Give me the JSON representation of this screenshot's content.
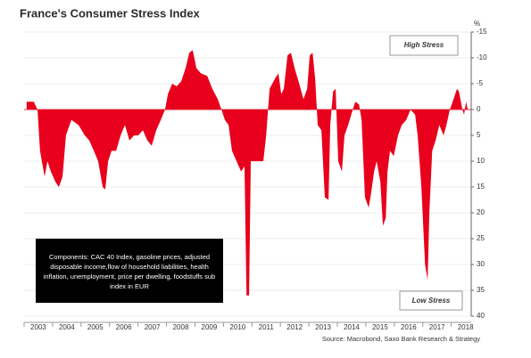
{
  "chart_data": {
    "type": "area",
    "title": "France's Consumer Stress Index",
    "unit": "%",
    "color": "#e8001c",
    "grid": true,
    "y_inverted": true,
    "annotations": {
      "high": "High Stress",
      "low": "Low Stress",
      "components": [
        "Components: CAC 40 Index, gasoline prices, adjusted",
        "disposable income,flow of household liabilities, health",
        "inflation, unemployment, price per dwelling, foodstuffs sub",
        "index in EUR"
      ]
    },
    "source": "Source: Macrobond, Saxo Bank Research & Strategy",
    "xlim": [
      2003,
      2018.7
    ],
    "xticks": [
      2003,
      2004,
      2005,
      2006,
      2007,
      2008,
      2009,
      2010,
      2011,
      2012,
      2013,
      2014,
      2015,
      2016,
      2017,
      2018
    ],
    "ylim": [
      40,
      -15
    ],
    "yticks": [
      -15,
      -10,
      -5,
      0,
      5,
      10,
      15,
      20,
      25,
      30,
      35,
      40
    ],
    "x": [
      2003.09,
      2003.34,
      2003.47,
      2003.56,
      2003.72,
      2003.82,
      2003.94,
      2004.1,
      2004.22,
      2004.35,
      2004.47,
      2004.66,
      2004.91,
      2005.13,
      2005.29,
      2005.45,
      2005.6,
      2005.76,
      2005.85,
      2005.95,
      2006.07,
      2006.23,
      2006.39,
      2006.54,
      2006.7,
      2006.86,
      2007.01,
      2007.17,
      2007.33,
      2007.48,
      2007.64,
      2007.8,
      2007.95,
      2008.05,
      2008.2,
      2008.36,
      2008.52,
      2008.67,
      2008.8,
      2008.92,
      2009.05,
      2009.21,
      2009.43,
      2009.61,
      2009.8,
      2009.93,
      2010.05,
      2010.18,
      2010.3,
      2010.46,
      2010.62,
      2010.74,
      2010.81,
      2010.9,
      2010.96,
      2011.12,
      2011.24,
      2011.4,
      2011.5,
      2011.62,
      2011.81,
      2011.93,
      2012.03,
      2012.12,
      2012.25,
      2012.37,
      2012.5,
      2012.66,
      2012.81,
      2012.94,
      2013.03,
      2013.13,
      2013.22,
      2013.31,
      2013.44,
      2013.56,
      2013.69,
      2013.75,
      2013.85,
      2013.94,
      2014.03,
      2014.16,
      2014.25,
      2014.38,
      2014.54,
      2014.63,
      2014.76,
      2014.85,
      2014.97,
      2015.1,
      2015.19,
      2015.29,
      2015.38,
      2015.51,
      2015.6,
      2015.7,
      2015.76,
      2015.85,
      2015.98,
      2016.13,
      2016.26,
      2016.42,
      2016.57,
      2016.73,
      2016.82,
      2016.95,
      2017.08,
      2017.17,
      2017.23,
      2017.33,
      2017.45,
      2017.58,
      2017.73,
      2017.83,
      2017.95,
      2018.08,
      2018.2,
      2018.27,
      2018.39,
      2018.45,
      2018.52,
      2018.58
    ],
    "values": [
      -1.5,
      -1.5,
      0,
      8,
      13,
      10,
      12,
      14,
      15,
      13,
      5,
      2,
      3,
      5,
      6,
      8,
      10,
      15,
      15.5,
      10,
      8,
      8,
      5,
      3,
      6,
      5,
      5,
      4,
      6,
      7,
      4,
      2,
      0,
      -3,
      -5,
      -4.5,
      -5.5,
      -8,
      -11,
      -11.5,
      -8,
      -7,
      -6.5,
      -4,
      -2,
      0,
      2,
      3,
      8,
      10,
      12,
      11,
      36,
      36,
      10,
      10,
      10,
      10,
      5,
      -4,
      -6,
      -7,
      -3,
      -4,
      -10.5,
      -11,
      -8,
      -5,
      -2,
      -4,
      -10.5,
      -11,
      -6,
      3,
      4,
      17,
      17.5,
      3,
      -3.5,
      -4,
      10,
      12,
      5,
      3,
      0,
      -1.5,
      -1,
      2,
      17,
      19,
      16,
      12,
      10,
      14,
      22.5,
      21,
      12,
      8,
      9,
      5,
      3,
      2,
      0,
      1,
      5,
      15,
      30,
      33,
      20,
      8,
      6,
      3,
      5,
      3,
      0,
      -2,
      -4,
      -3.5,
      0,
      1,
      -1.5,
      0
    ]
  }
}
